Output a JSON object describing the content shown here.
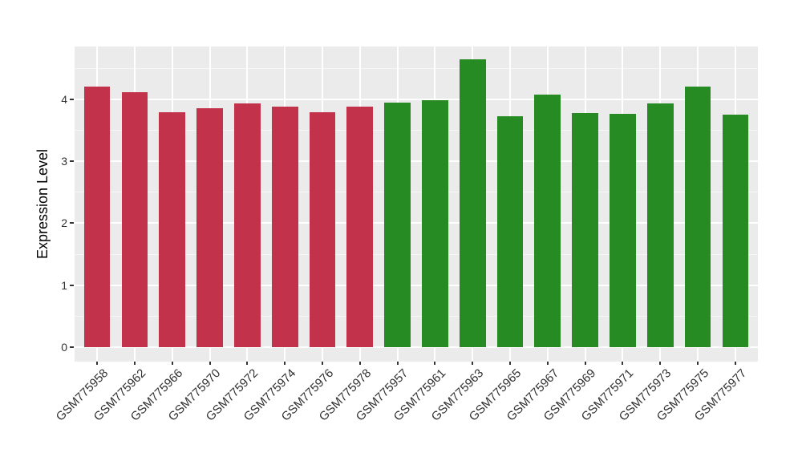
{
  "chart_data": {
    "type": "bar",
    "title": "",
    "xlabel": "",
    "ylabel": "Expression Level",
    "categories": [
      "GSM775958",
      "GSM775962",
      "GSM775966",
      "GSM775970",
      "GSM775972",
      "GSM775974",
      "GSM775976",
      "GSM775978",
      "GSM775957",
      "GSM775961",
      "GSM775963",
      "GSM775965",
      "GSM775967",
      "GSM775969",
      "GSM775971",
      "GSM775973",
      "GSM775975",
      "GSM775977"
    ],
    "values": [
      4.21,
      4.11,
      3.79,
      3.85,
      3.93,
      3.88,
      3.79,
      3.88,
      3.94,
      3.99,
      4.64,
      3.72,
      4.08,
      3.78,
      3.76,
      3.93,
      4.21,
      3.75
    ],
    "groups": [
      "crimson",
      "crimson",
      "crimson",
      "crimson",
      "crimson",
      "crimson",
      "crimson",
      "crimson",
      "green",
      "green",
      "green",
      "green",
      "green",
      "green",
      "green",
      "green",
      "green",
      "green"
    ],
    "group_colors": {
      "crimson": "#C3324B",
      "green": "#268B22"
    },
    "yticks": [
      "0",
      "1",
      "2",
      "3",
      "4"
    ],
    "ytick_values": [
      0,
      1,
      2,
      3,
      4
    ],
    "yminor_values": [
      0.5,
      1.5,
      2.5,
      3.5,
      4.5
    ],
    "ylim": [
      -0.23,
      4.85
    ],
    "bar_width_ratio": 0.7,
    "legend_position": "none",
    "grid": "on",
    "colors": {
      "panel_background": "#EBEBEB",
      "grid_major": "#FFFFFF",
      "grid_minor": "#F5F5F5",
      "axis_text": "#303030",
      "tick_mark": "#333333",
      "figure_background": "#FFFFFF"
    }
  }
}
